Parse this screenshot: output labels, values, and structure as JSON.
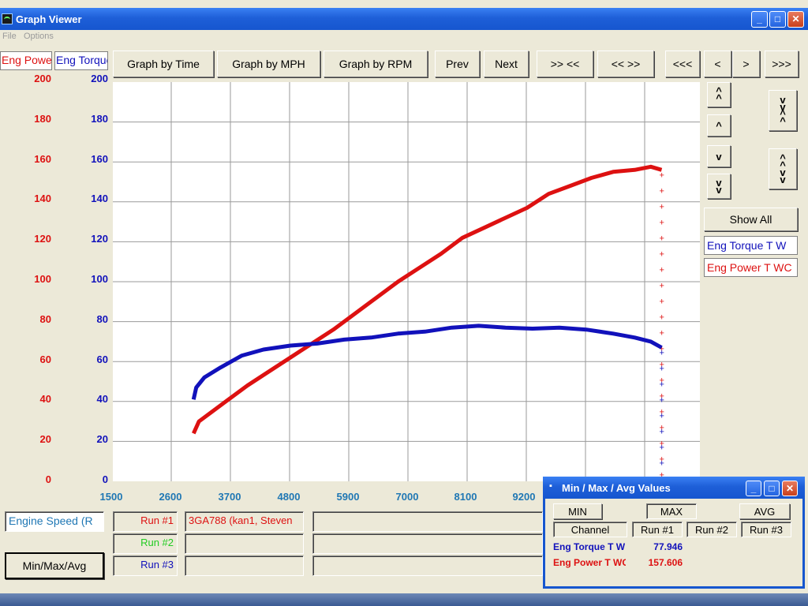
{
  "window": {
    "title": "Graph Viewer",
    "menu": [
      "File",
      "Options"
    ]
  },
  "axis_headers": {
    "power": "Eng Power T W",
    "torque": "Eng Torque T W"
  },
  "toolbar": {
    "graph_by_time": "Graph by Time",
    "graph_by_mph": "Graph by MPH",
    "graph_by_rpm": "Graph by RPM",
    "prev": "Prev",
    "next": "Next",
    "zoom_in": ">> <<",
    "zoom_out": "<< >>",
    "scroll_far_left": "<<<",
    "scroll_left": "<",
    "scroll_right": ">",
    "scroll_far_right": ">>>"
  },
  "side_panel": {
    "show_all": "Show All",
    "legend_torque": "Eng Torque T W",
    "legend_power": "Eng Power T WC"
  },
  "colors": {
    "power": "#dd1111",
    "torque": "#1111bb",
    "axis_x": "#1f77b4",
    "run2": "#22cc22"
  },
  "chart_data": {
    "type": "line",
    "x_channel": "Engine Speed (R",
    "x_ticks": [
      "1500",
      "2600",
      "3700",
      "4800",
      "5900",
      "7000",
      "8100",
      "9200"
    ],
    "xlim": [
      1500,
      12000
    ],
    "y_left": {
      "name": "Eng Pow",
      "ticks": [
        "200",
        "180",
        "160",
        "140",
        "120",
        "100",
        "80",
        "60",
        "40",
        "20",
        "0"
      ],
      "ylim": [
        0,
        200
      ]
    },
    "y_right": {
      "name": "Eng Torq",
      "ticks": [
        "200",
        "180",
        "160",
        "140",
        "120",
        "100",
        "80",
        "60",
        "40",
        "20",
        "0"
      ],
      "ylim": [
        0,
        200
      ]
    },
    "grid": true,
    "series": [
      {
        "name": "Eng Power T WC",
        "color": "#dd1111",
        "x": [
          3000,
          3100,
          3300,
          3600,
          4000,
          4400,
          4800,
          5200,
          5600,
          6000,
          6400,
          6800,
          7200,
          7600,
          8000,
          8400,
          8800,
          9200,
          9600,
          10000,
          10400,
          10800,
          11200,
          11500,
          11700
        ],
        "values": [
          24,
          30,
          34,
          40,
          48,
          55,
          62,
          69,
          76,
          84,
          92,
          100,
          107,
          114,
          122,
          127,
          132,
          137,
          144,
          148,
          152,
          155,
          156,
          157.6,
          156
        ]
      },
      {
        "name": "Eng Torque T W",
        "color": "#1111bb",
        "x": [
          3000,
          3050,
          3200,
          3500,
          3900,
          4300,
          4800,
          5300,
          5800,
          6300,
          6800,
          7300,
          7800,
          8300,
          8800,
          9300,
          9800,
          10300,
          10800,
          11200,
          11500,
          11700
        ],
        "values": [
          41,
          47,
          52,
          57,
          63,
          66,
          68,
          69,
          71,
          72,
          74,
          75,
          77,
          77.9,
          77,
          76.5,
          77,
          76,
          74,
          72,
          70,
          67
        ]
      }
    ]
  },
  "runs": {
    "channel_field": "Engine Speed (R",
    "run1_label": "Run #1",
    "run1_value": "3GA788 (kan1, Steven",
    "run2_label": "Run #2",
    "run3_label": "Run #3",
    "minmax_button": "Min/Max/Avg"
  },
  "minmax_window": {
    "title": "Min / Max / Avg Values",
    "min": "MIN",
    "max": "MAX",
    "avg": "AVG",
    "col_channel": "Channel",
    "col_run1": "Run #1",
    "col_run2": "Run #2",
    "col_run3": "Run #3",
    "rows": [
      {
        "channel": "Eng Torque T W",
        "run1": "77.946"
      },
      {
        "channel": "Eng Power T WC",
        "run1": "157.606"
      }
    ]
  }
}
